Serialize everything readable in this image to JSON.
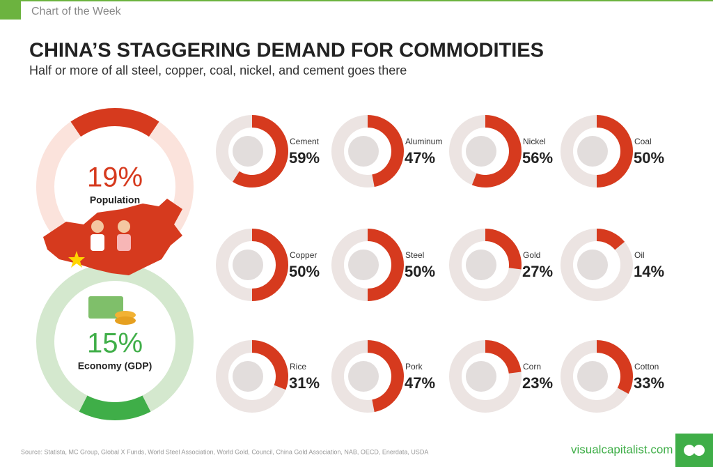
{
  "header": "Chart of the Week",
  "title": "CHINA’S STAGGERING DEMAND FOR COMMODITIES",
  "subtitle": "Half or more of all steel, copper, coal, nickel, and cement goes there",
  "chart_data": [
    {
      "type": "donut",
      "categories": [
        "Population",
        "Economy (GDP)"
      ],
      "values": [
        19,
        15
      ],
      "value_labels": [
        "19%",
        "15%"
      ],
      "colors": [
        "#d63a1e",
        "#3fae48"
      ],
      "track_colors": [
        "#fbe3dc",
        "#d4e8ce"
      ]
    },
    {
      "type": "donut",
      "categories": [
        "Cement",
        "Aluminum",
        "Nickel",
        "Coal",
        "Copper",
        "Steel",
        "Gold",
        "Oil",
        "Rice",
        "Pork",
        "Corn",
        "Cotton"
      ],
      "values": [
        59,
        47,
        56,
        50,
        50,
        50,
        27,
        14,
        31,
        47,
        23,
        33
      ],
      "value_labels": [
        "59%",
        "47%",
        "56%",
        "50%",
        "50%",
        "50%",
        "27%",
        "14%",
        "31%",
        "47%",
        "23%",
        "33%"
      ],
      "color": "#d63a1e",
      "track_color": "#ece4e2"
    }
  ],
  "source": "Source: Statista, MC Group, Global X Funds, World Steel Association, World Gold, Council, China Gold Association, NAB, OECD, Enerdata, USDA",
  "brand": "visualcapitalist.com"
}
